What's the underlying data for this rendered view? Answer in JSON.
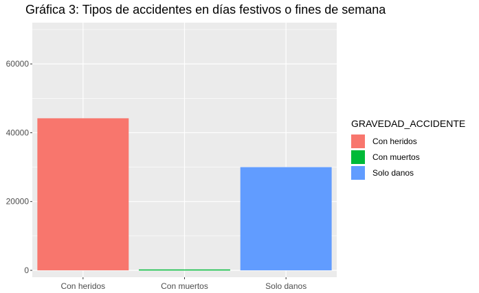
{
  "chart_data": {
    "type": "bar",
    "title": "Gráfica 3: Tipos de accidentes en días festivos o fines de semana",
    "xlabel": "",
    "ylabel": "",
    "categories": [
      "Con heridos",
      "Con muertos",
      "Solo danos"
    ],
    "values": [
      44200,
      250,
      30000
    ],
    "ylim": [
      -2000,
      72000
    ],
    "yticks": [
      0,
      20000,
      40000,
      60000
    ],
    "ytick_labels": [
      "0",
      "20000",
      "40000",
      "60000"
    ],
    "grid": true,
    "legend": {
      "title": "GRAVEDAD_ACCIDENTE",
      "position": "right",
      "items": [
        "Con heridos",
        "Con muertos",
        "Solo danos"
      ]
    },
    "colors": [
      "#F8766D",
      "#00BA38",
      "#619CFF"
    ],
    "panel_background": "#EBEBEB",
    "grid_color": "#FFFFFF"
  }
}
